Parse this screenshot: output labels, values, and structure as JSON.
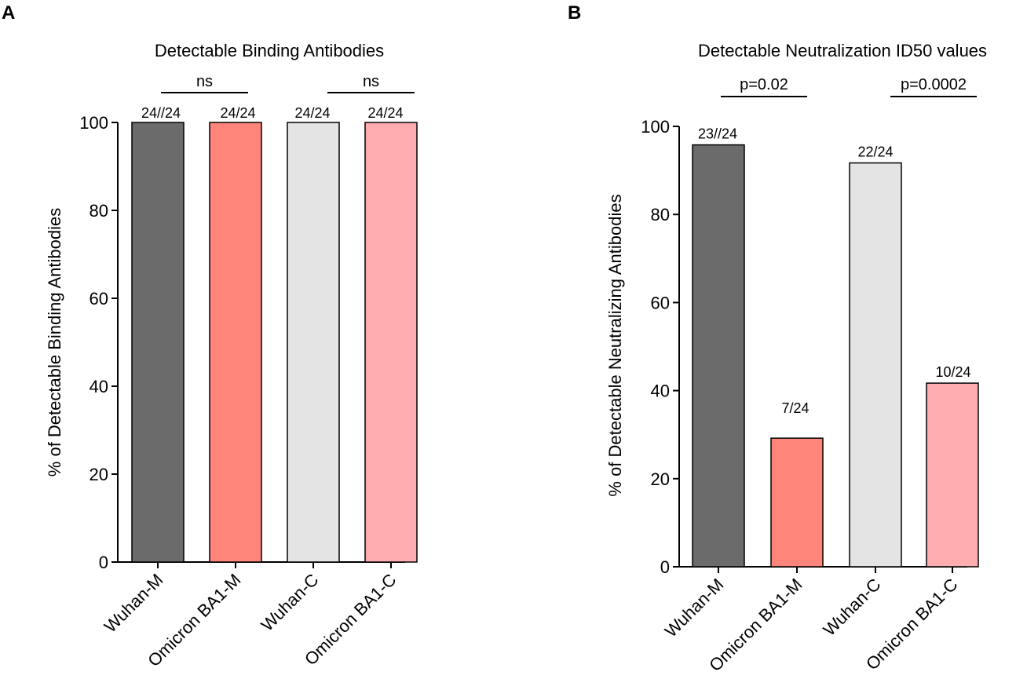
{
  "chart_data": [
    {
      "type": "bar",
      "panel": "A",
      "title": "Detectable Binding Antibodies",
      "ylabel": "% of Detectable Binding Antibodies",
      "xlabel": "",
      "ylim": [
        0,
        100
      ],
      "yticks": [
        0,
        20,
        40,
        60,
        80,
        100
      ],
      "categories": [
        "Wuhan-M",
        "Omicron BA1-M",
        "Wuhan-C",
        "Omicron BA1-C"
      ],
      "values": [
        100,
        100,
        100,
        100
      ],
      "data_labels": [
        "24//24",
        "24/24",
        "24/24",
        "24/24"
      ],
      "colors": [
        "#6b6b6b",
        "#ff857a",
        "#e4e4e4",
        "#ffadb0"
      ],
      "comparisons": [
        {
          "between": [
            "Wuhan-M",
            "Omicron BA1-M"
          ],
          "label": "ns"
        },
        {
          "between": [
            "Wuhan-C",
            "Omicron BA1-C"
          ],
          "label": "ns"
        }
      ]
    },
    {
      "type": "bar",
      "panel": "B",
      "title": "Detectable Neutralization ID50 values",
      "ylabel": "% of Detectable Neutralizing Antibodies",
      "xlabel": "",
      "ylim": [
        0,
        100
      ],
      "yticks": [
        0,
        20,
        40,
        60,
        80,
        100
      ],
      "categories": [
        "Wuhan-M",
        "Omicron BA1-M",
        "Wuhan-C",
        "Omicron BA1-C"
      ],
      "values": [
        95.8,
        29.2,
        91.7,
        41.7
      ],
      "data_labels": [
        "23//24",
        "7/24",
        "22/24",
        "10/24"
      ],
      "colors": [
        "#6b6b6b",
        "#ff857a",
        "#e4e4e4",
        "#ffadb0"
      ],
      "comparisons": [
        {
          "between": [
            "Wuhan-M",
            "Omicron BA1-M"
          ],
          "label": "p=0.02"
        },
        {
          "between": [
            "Wuhan-C",
            "Omicron BA1-C"
          ],
          "label": "p=0.0002"
        }
      ]
    }
  ]
}
